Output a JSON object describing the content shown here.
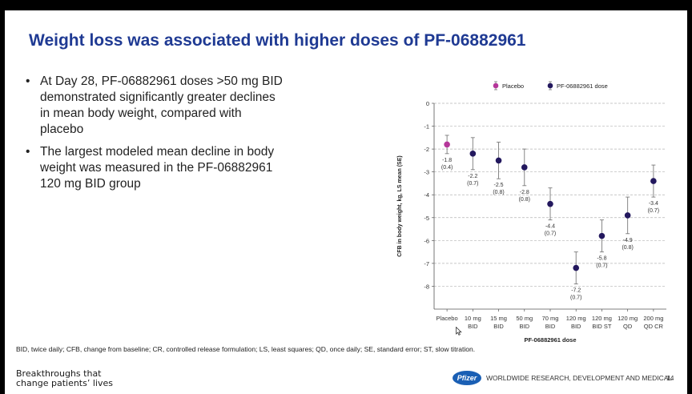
{
  "slide": {
    "title": "Weight loss was associated with higher doses of PF-06882961",
    "bullets": [
      {
        "lines": [
          "At Day 28, PF-06882961 doses >50 mg BID",
          "demonstrated significantly greater declines",
          "in mean body weight, compared with",
          "placebo"
        ]
      },
      {
        "lines": [
          "The largest modeled mean decline in body",
          "weight was measured in the PF-06882961",
          "120 mg BID group"
        ]
      }
    ],
    "footnote": "BID, twice daily; CFB, change from baseline; CR, controlled release formulation; LS, least squares; QD, once daily; SE, standard error; ST, slow titration.",
    "tagline": [
      "Breakthroughs that",
      "change patients’ lives"
    ],
    "company_unit": "WORLDWIDE RESEARCH, DEVELOPMENT AND MEDICAL",
    "logo_text": "Pfizer",
    "page_number": "14"
  },
  "chart_data": {
    "type": "scatter",
    "title": "",
    "xlabel": "PF-06882961 dose",
    "ylabel": "CFB in body weight, kg, LS mean (SE)",
    "ylim": [
      -9,
      0
    ],
    "yticks": [
      "0",
      "-1",
      "-2",
      "-3",
      "-4",
      "-5",
      "-6",
      "-7",
      "-8"
    ],
    "grid": "horizontal dashed",
    "legend_position": "top",
    "categories": [
      [
        "Placebo"
      ],
      [
        "10 mg",
        "BID"
      ],
      [
        "15 mg",
        "BID"
      ],
      [
        "50 mg",
        "BID"
      ],
      [
        "70 mg",
        "BID"
      ],
      [
        "120 mg",
        "BID"
      ],
      [
        "120 mg",
        "BID ST"
      ],
      [
        "120 mg",
        "QD"
      ],
      [
        "200 mg",
        "QD CR"
      ]
    ],
    "series": [
      {
        "name": "Placebo",
        "color": "#b5379a",
        "indices": [
          0
        ]
      },
      {
        "name": "PF-06882961 dose",
        "color": "#23185e",
        "indices": [
          1,
          2,
          3,
          4,
          5,
          6,
          7,
          8
        ]
      }
    ],
    "values": [
      -1.8,
      -2.2,
      -2.5,
      -2.8,
      -4.4,
      -7.2,
      -5.8,
      -4.9,
      -3.4
    ],
    "se": [
      0.4,
      0.7,
      0.8,
      0.8,
      0.7,
      0.7,
      0.7,
      0.8,
      0.7
    ],
    "value_labels": [
      "-1.8",
      "-2.2",
      "-2.5",
      "-2.8",
      "-4.4",
      "-7.2",
      "-5.8",
      "-4.9",
      "-3.4"
    ],
    "se_labels": [
      "(0.4)",
      "(0.7)",
      "(0.8)",
      "(0.8)",
      "(0.7)",
      "(0.7)",
      "(0.7)",
      "(0.8)",
      "(0.7)"
    ]
  }
}
